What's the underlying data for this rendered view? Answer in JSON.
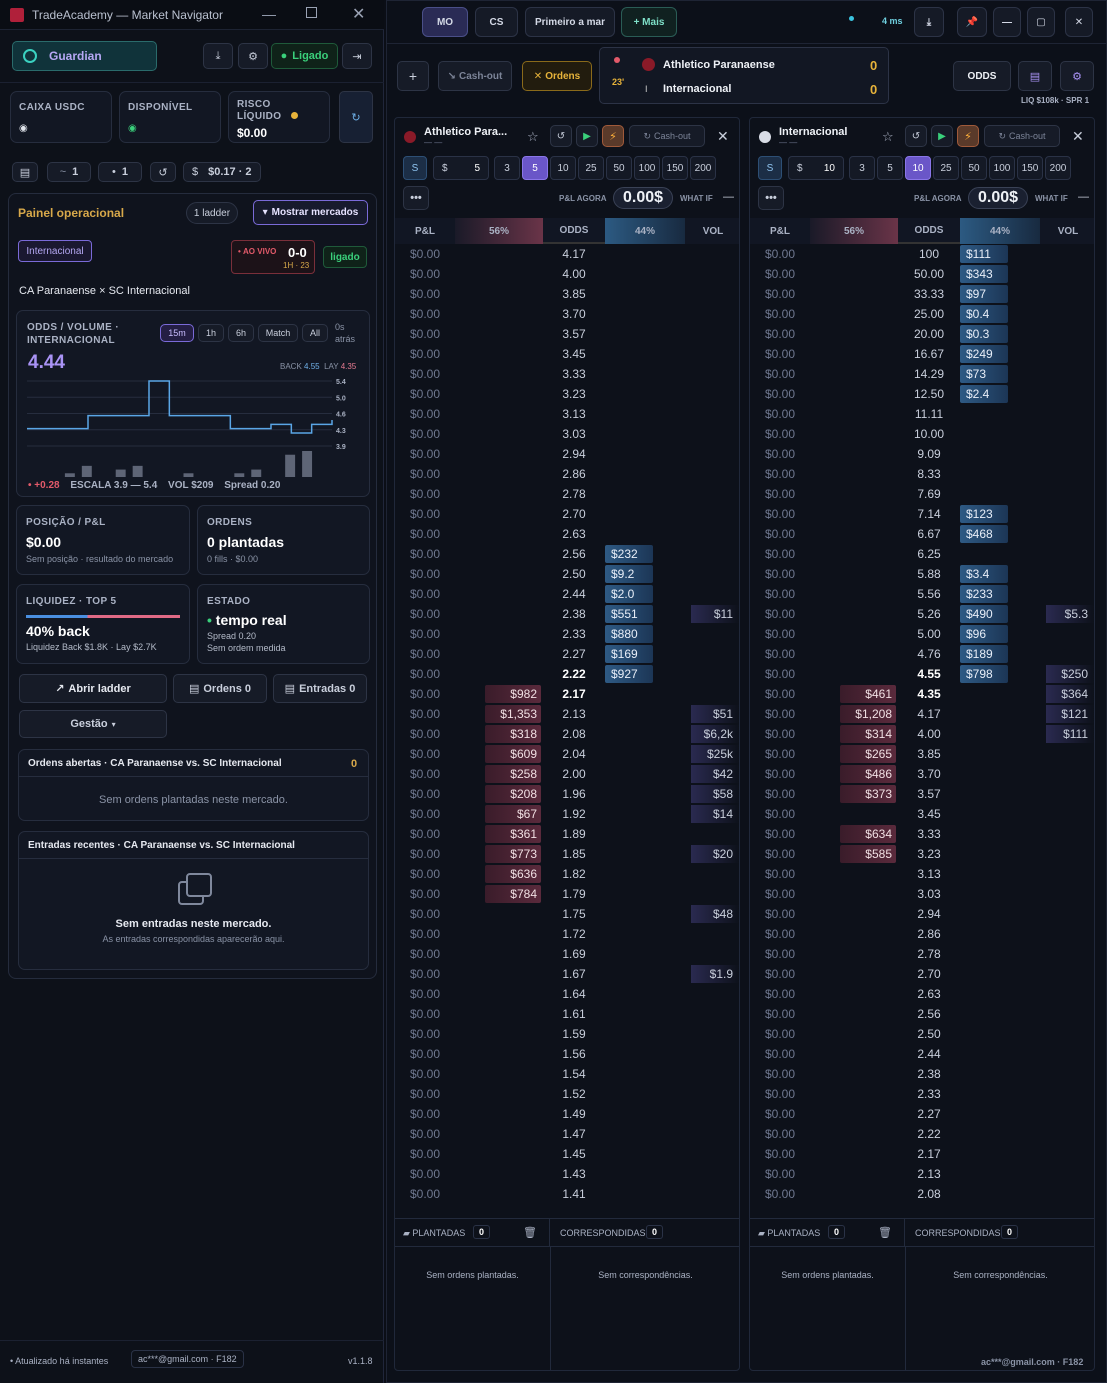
{
  "app": {
    "title": "TradeAcademy — Market Navigator",
    "version": "v1.1.8",
    "updated": "Atualizado há instantes",
    "account": "ac***@gmail.com · F182"
  },
  "left": {
    "user": "Guardian",
    "status": "Ligado",
    "caixa": "CAIXA USDC",
    "disponivel": "DISPONÍVEL",
    "risco": "RISCO LÍQUIDO",
    "risco_val": "$0.00",
    "small": [
      "1",
      "1",
      "$0.17 · 2"
    ],
    "painel": "Painel operacional",
    "ladder_count": "1 ladder",
    "mostrar": "Mostrar mercados",
    "team_tag": "Internacional",
    "ao_vivo": "AO VIVO",
    "score": "0-0",
    "half": "1H · 23",
    "ligado": "ligado",
    "match": "CA Paranaense × SC Internacional",
    "chart_title": "ODDS / VOLUME · INTERNACIONAL",
    "tfs": [
      "15m",
      "1h",
      "6h",
      "Match",
      "All"
    ],
    "ago": "0s atrás",
    "price": "4.44",
    "back_lbl": "BACK",
    "back_val": "4.55",
    "lay_lbl": "LAY",
    "lay_val": "4.35",
    "yticks": [
      "5.4",
      "5.0",
      "4.6",
      "4.3",
      "3.9"
    ],
    "delta": "+0.28",
    "escala": "ESCALA 3.9 — 5.4",
    "vol": "VOL $209",
    "spread": "Spread 0.20",
    "pos_lbl": "POSIÇÃO / P&L",
    "pos_val": "$0.00",
    "pos_sub": "Sem posição · resultado do mercado",
    "ord_lbl": "ORDENS",
    "ord_val": "0 plantadas",
    "ord_sub": "0 fills · $0.00",
    "liq_lbl": "LIQUIDEZ · TOP 5",
    "liq_val": "40% back",
    "liq_sub": "Liquidez Back $1.8K · Lay $2.7K",
    "est_lbl": "ESTADO",
    "est_val": "tempo real",
    "est_sub1": "Spread 0.20",
    "est_sub2": "Sem ordem medida",
    "abrir": "Abrir ladder",
    "ordens0": "Ordens 0",
    "entradas0": "Entradas 0",
    "gestao": "Gestão",
    "open_title": "Ordens abertas · CA Paranaense vs. SC Internacional",
    "open_count": "0",
    "open_empty": "Sem ordens plantadas neste mercado.",
    "rec_title": "Entradas recentes · CA Paranaense vs. SC Internacional",
    "rec_empty": "Sem entradas neste mercado.",
    "rec_sub": "As entradas correspondidas aparecerão aqui."
  },
  "chart_data": {
    "type": "line",
    "series": [
      {
        "values": [
          4.3,
          4.3,
          4.3,
          4.6,
          4.6,
          4.6,
          5.4,
          4.6,
          4.6,
          4.6,
          4.3,
          4.3,
          4.4,
          4.2,
          4.4,
          4.5
        ]
      }
    ],
    "volume": [
      0,
      0,
      1,
      3,
      0,
      2,
      3,
      0,
      0,
      1,
      0,
      0,
      1,
      2,
      0,
      6,
      7,
      0
    ],
    "ylim": [
      3.9,
      5.4
    ]
  },
  "top": {
    "tabs": [
      "MO",
      "CS",
      "Primeiro a mar",
      "+ Mais"
    ],
    "ms": "4 ms",
    "cashout": "Cash-out",
    "ordens": "Ordens",
    "minute": "23'",
    "home": "Athletico Paranaense",
    "away": "Internacional",
    "home_score": "0",
    "away_score": "0",
    "odds_btn": "ODDS",
    "liq": "LIQ $108k · SPR 1"
  },
  "panels": [
    {
      "team": "Athletico Para...",
      "cashout": "Cash-out",
      "stake": "5",
      "stakes": [
        "3",
        "5",
        "10",
        "25",
        "50",
        "100",
        "150",
        "200"
      ],
      "sel": "5",
      "plnow": "P&L AGORA",
      "plval": "0.00$",
      "whatif": "WHAT IF",
      "whatval": "—",
      "hdr": [
        "P&L",
        "56%",
        "ODDS",
        "44%",
        "VOL"
      ],
      "rows": [
        [
          "$0.00",
          "",
          "4.17",
          "",
          ""
        ],
        [
          "$0.00",
          "",
          "4.00",
          "",
          ""
        ],
        [
          "$0.00",
          "",
          "3.85",
          "",
          ""
        ],
        [
          "$0.00",
          "",
          "3.70",
          "",
          ""
        ],
        [
          "$0.00",
          "",
          "3.57",
          "",
          ""
        ],
        [
          "$0.00",
          "",
          "3.45",
          "",
          ""
        ],
        [
          "$0.00",
          "",
          "3.33",
          "",
          ""
        ],
        [
          "$0.00",
          "",
          "3.23",
          "",
          ""
        ],
        [
          "$0.00",
          "",
          "3.13",
          "",
          ""
        ],
        [
          "$0.00",
          "",
          "3.03",
          "",
          ""
        ],
        [
          "$0.00",
          "",
          "2.94",
          "",
          ""
        ],
        [
          "$0.00",
          "",
          "2.86",
          "",
          ""
        ],
        [
          "$0.00",
          "",
          "2.78",
          "",
          ""
        ],
        [
          "$0.00",
          "",
          "2.70",
          "",
          ""
        ],
        [
          "$0.00",
          "",
          "2.63",
          "",
          ""
        ],
        [
          "$0.00",
          "",
          "2.56",
          "$232",
          ""
        ],
        [
          "$0.00",
          "",
          "2.50",
          "$9.2",
          ""
        ],
        [
          "$0.00",
          "",
          "2.44",
          "$2.0",
          ""
        ],
        [
          "$0.00",
          "",
          "2.38",
          "$551",
          "$11"
        ],
        [
          "$0.00",
          "",
          "2.33",
          "$880",
          ""
        ],
        [
          "$0.00",
          "",
          "2.27",
          "$169",
          ""
        ],
        [
          "$0.00",
          "",
          "2.22",
          "$927",
          ""
        ],
        [
          "$0.00",
          "$982",
          "2.17",
          "",
          ""
        ],
        [
          "$0.00",
          "$1,353",
          "2.13",
          "",
          "$51"
        ],
        [
          "$0.00",
          "$318",
          "2.08",
          "",
          "$6,2k"
        ],
        [
          "$0.00",
          "$609",
          "2.04",
          "",
          "$25k"
        ],
        [
          "$0.00",
          "$258",
          "2.00",
          "",
          "$42"
        ],
        [
          "$0.00",
          "$208",
          "1.96",
          "",
          "$58"
        ],
        [
          "$0.00",
          "$67",
          "1.92",
          "",
          "$14"
        ],
        [
          "$0.00",
          "$361",
          "1.89",
          "",
          ""
        ],
        [
          "$0.00",
          "$773",
          "1.85",
          "",
          "$20"
        ],
        [
          "$0.00",
          "$636",
          "1.82",
          "",
          ""
        ],
        [
          "$0.00",
          "$784",
          "1.79",
          "",
          ""
        ],
        [
          "$0.00",
          "",
          "1.75",
          "",
          "$48"
        ],
        [
          "$0.00",
          "",
          "1.72",
          "",
          ""
        ],
        [
          "$0.00",
          "",
          "1.69",
          "",
          ""
        ],
        [
          "$0.00",
          "",
          "1.67",
          "",
          "$1.9"
        ],
        [
          "$0.00",
          "",
          "1.64",
          "",
          ""
        ],
        [
          "$0.00",
          "",
          "1.61",
          "",
          ""
        ],
        [
          "$0.00",
          "",
          "1.59",
          "",
          ""
        ],
        [
          "$0.00",
          "",
          "1.56",
          "",
          ""
        ],
        [
          "$0.00",
          "",
          "1.54",
          "",
          ""
        ],
        [
          "$0.00",
          "",
          "1.52",
          "",
          ""
        ],
        [
          "$0.00",
          "",
          "1.49",
          "",
          ""
        ],
        [
          "$0.00",
          "",
          "1.47",
          "",
          ""
        ],
        [
          "$0.00",
          "",
          "1.45",
          "",
          ""
        ],
        [
          "$0.00",
          "",
          "1.43",
          "",
          ""
        ],
        [
          "$0.00",
          "",
          "1.41",
          "",
          ""
        ]
      ],
      "best_back": "2.22",
      "best_lay": "2.17",
      "plantadas": "PLANTADAS",
      "pl_count": "0",
      "corresp": "CORRESPONDIDAS",
      "co_count": "0",
      "empty1": "Sem ordens plantadas.",
      "empty2": "Sem correspondências."
    },
    {
      "team": "Internacional",
      "cashout": "Cash-out",
      "stake": "10",
      "stakes": [
        "3",
        "5",
        "10",
        "25",
        "50",
        "100",
        "150",
        "200"
      ],
      "sel": "10",
      "plnow": "P&L AGORA",
      "plval": "0.00$",
      "whatif": "WHAT IF",
      "whatval": "—",
      "hdr": [
        "P&L",
        "56%",
        "ODDS",
        "44%",
        "VOL"
      ],
      "rows": [
        [
          "$0.00",
          "",
          "100",
          "$111",
          ""
        ],
        [
          "$0.00",
          "",
          "50.00",
          "$343",
          ""
        ],
        [
          "$0.00",
          "",
          "33.33",
          "$97",
          ""
        ],
        [
          "$0.00",
          "",
          "25.00",
          "$0.4",
          ""
        ],
        [
          "$0.00",
          "",
          "20.00",
          "$0.3",
          ""
        ],
        [
          "$0.00",
          "",
          "16.67",
          "$249",
          ""
        ],
        [
          "$0.00",
          "",
          "14.29",
          "$73",
          ""
        ],
        [
          "$0.00",
          "",
          "12.50",
          "$2.4",
          ""
        ],
        [
          "$0.00",
          "",
          "11.11",
          "",
          ""
        ],
        [
          "$0.00",
          "",
          "10.00",
          "",
          ""
        ],
        [
          "$0.00",
          "",
          "9.09",
          "",
          ""
        ],
        [
          "$0.00",
          "",
          "8.33",
          "",
          ""
        ],
        [
          "$0.00",
          "",
          "7.69",
          "",
          ""
        ],
        [
          "$0.00",
          "",
          "7.14",
          "$123",
          ""
        ],
        [
          "$0.00",
          "",
          "6.67",
          "$468",
          ""
        ],
        [
          "$0.00",
          "",
          "6.25",
          "",
          ""
        ],
        [
          "$0.00",
          "",
          "5.88",
          "$3.4",
          ""
        ],
        [
          "$0.00",
          "",
          "5.56",
          "$233",
          ""
        ],
        [
          "$0.00",
          "",
          "5.26",
          "$490",
          "$5.3"
        ],
        [
          "$0.00",
          "",
          "5.00",
          "$96",
          ""
        ],
        [
          "$0.00",
          "",
          "4.76",
          "$189",
          ""
        ],
        [
          "$0.00",
          "",
          "4.55",
          "$798",
          "$250"
        ],
        [
          "$0.00",
          "$461",
          "4.35",
          "",
          "$364"
        ],
        [
          "$0.00",
          "$1,208",
          "4.17",
          "",
          "$121"
        ],
        [
          "$0.00",
          "$314",
          "4.00",
          "",
          "$111"
        ],
        [
          "$0.00",
          "$265",
          "3.85",
          "",
          ""
        ],
        [
          "$0.00",
          "$486",
          "3.70",
          "",
          ""
        ],
        [
          "$0.00",
          "$373",
          "3.57",
          "",
          ""
        ],
        [
          "$0.00",
          "",
          "3.45",
          "",
          ""
        ],
        [
          "$0.00",
          "$634",
          "3.33",
          "",
          ""
        ],
        [
          "$0.00",
          "$585",
          "3.23",
          "",
          ""
        ],
        [
          "$0.00",
          "",
          "3.13",
          "",
          ""
        ],
        [
          "$0.00",
          "",
          "3.03",
          "",
          ""
        ],
        [
          "$0.00",
          "",
          "2.94",
          "",
          ""
        ],
        [
          "$0.00",
          "",
          "2.86",
          "",
          ""
        ],
        [
          "$0.00",
          "",
          "2.78",
          "",
          ""
        ],
        [
          "$0.00",
          "",
          "2.70",
          "",
          ""
        ],
        [
          "$0.00",
          "",
          "2.63",
          "",
          ""
        ],
        [
          "$0.00",
          "",
          "2.56",
          "",
          ""
        ],
        [
          "$0.00",
          "",
          "2.50",
          "",
          ""
        ],
        [
          "$0.00",
          "",
          "2.44",
          "",
          ""
        ],
        [
          "$0.00",
          "",
          "2.38",
          "",
          ""
        ],
        [
          "$0.00",
          "",
          "2.33",
          "",
          ""
        ],
        [
          "$0.00",
          "",
          "2.27",
          "",
          ""
        ],
        [
          "$0.00",
          "",
          "2.22",
          "",
          ""
        ],
        [
          "$0.00",
          "",
          "2.17",
          "",
          ""
        ],
        [
          "$0.00",
          "",
          "2.13",
          "",
          ""
        ],
        [
          "$0.00",
          "",
          "2.08",
          "",
          ""
        ]
      ],
      "best_back": "4.55",
      "best_lay": "4.35",
      "plantadas": "PLANTADAS",
      "pl_count": "0",
      "corresp": "CORRESPONDIDAS",
      "co_count": "0",
      "empty1": "Sem ordens plantadas.",
      "empty2": "Sem correspondências."
    }
  ]
}
